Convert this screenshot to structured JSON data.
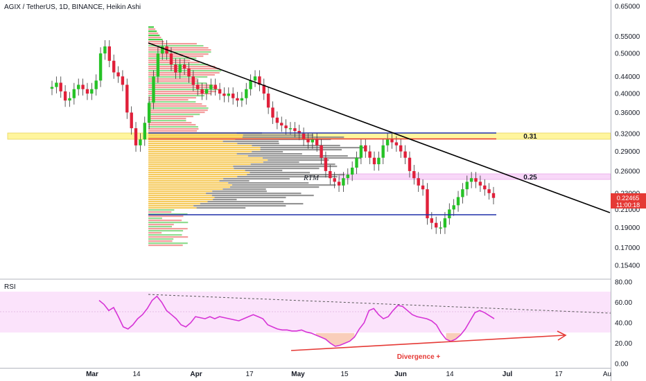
{
  "header": {
    "title": "AGIX / TetherUS, 1D, BINANCE, Heikin Ashi"
  },
  "colors": {
    "bull": "#26c226",
    "bear": "#e0203a",
    "rsi": "#d633d6",
    "rsi_band": "#fbe3fb",
    "level_band_031": "#fff59d",
    "level_band_025": "#f8d7f8",
    "trend": "#000000",
    "blue": "#1e2fa8",
    "red": "#e53935",
    "tag": "#e53935"
  },
  "chart_data": [
    {
      "type": "candlestick",
      "title": "AGIX / TetherUS, 1D, BINANCE, Heikin Ashi",
      "scale": "log",
      "ylim": [
        0.138,
        0.66
      ],
      "y_ticks": [
        "0.65000",
        "0.55000",
        "0.50000",
        "0.44000",
        "0.40000",
        "0.36000",
        "0.32000",
        "0.29000",
        "0.26000",
        "0.23000",
        "0.21000",
        "0.19000",
        "0.17000",
        "0.15400"
      ],
      "x_ticks": [
        "Mar",
        "14",
        "Apr",
        "17",
        "May",
        "15",
        "Jun",
        "14",
        "Jul",
        "17",
        "Au"
      ],
      "last_price": "0.22465",
      "countdown": "11:00:18",
      "levels": [
        {
          "label": "0.31",
          "value": 0.315
        },
        {
          "label": "0.25",
          "value": 0.251
        }
      ],
      "annotations": {
        "rtm": "RTM"
      },
      "candles_close": [
        0.415,
        0.425,
        0.405,
        0.385,
        0.39,
        0.41,
        0.42,
        0.41,
        0.4,
        0.41,
        0.43,
        0.5,
        0.52,
        0.48,
        0.45,
        0.44,
        0.42,
        0.36,
        0.33,
        0.3,
        0.31,
        0.34,
        0.38,
        0.44,
        0.5,
        0.52,
        0.5,
        0.47,
        0.45,
        0.47,
        0.46,
        0.44,
        0.42,
        0.41,
        0.4,
        0.41,
        0.42,
        0.41,
        0.4,
        0.395,
        0.4,
        0.39,
        0.385,
        0.39,
        0.41,
        0.43,
        0.44,
        0.42,
        0.4,
        0.37,
        0.35,
        0.34,
        0.335,
        0.33,
        0.33,
        0.325,
        0.32,
        0.31,
        0.305,
        0.31,
        0.3,
        0.28,
        0.26,
        0.25,
        0.245,
        0.24,
        0.25,
        0.255,
        0.265,
        0.28,
        0.3,
        0.29,
        0.28,
        0.27,
        0.28,
        0.3,
        0.31,
        0.305,
        0.3,
        0.29,
        0.28,
        0.26,
        0.25,
        0.24,
        0.235,
        0.2,
        0.195,
        0.19,
        0.19,
        0.2,
        0.21,
        0.215,
        0.225,
        0.235,
        0.245,
        0.25,
        0.245,
        0.24,
        0.235,
        0.23,
        0.224
      ],
      "rsi": {
        "label": "RSI",
        "ylim": [
          0,
          80
        ],
        "y_ticks": [
          "80.00",
          "60.00",
          "40.00",
          "20.00",
          "0.00"
        ],
        "band": [
          30,
          70
        ],
        "values": [
          62,
          58,
          52,
          55,
          46,
          36,
          34,
          38,
          44,
          48,
          54,
          62,
          66,
          60,
          52,
          48,
          44,
          38,
          36,
          40,
          46,
          45,
          44,
          46,
          44,
          46,
          45,
          44,
          43,
          42,
          44,
          46,
          48,
          46,
          44,
          38,
          36,
          34,
          33,
          33,
          32,
          32,
          33,
          31,
          30,
          28,
          26,
          24,
          20,
          17,
          18,
          20,
          22,
          26,
          34,
          40,
          52,
          54,
          48,
          44,
          46,
          52,
          57,
          56,
          52,
          48,
          46,
          45,
          44,
          42,
          38,
          30,
          24,
          22,
          24,
          28,
          34,
          42,
          50,
          52,
          50,
          47,
          44
        ]
      },
      "divergence_label": "Divergence +"
    }
  ]
}
